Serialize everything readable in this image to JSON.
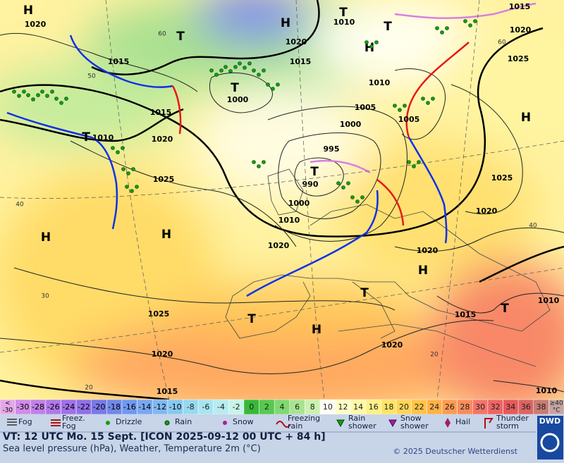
{
  "map": {
    "pressure_labels": [
      "1020",
      "1015",
      "1015",
      "1020",
      "1010",
      "1025",
      "1020",
      "1015",
      "1010",
      "1000",
      "1010",
      "1005",
      "1000",
      "995",
      "990",
      "1000",
      "1010",
      "1020",
      "1005",
      "1025",
      "1020",
      "1020",
      "1025",
      "1020",
      "1015",
      "1020",
      "1015",
      "1010",
      "1010",
      "1015",
      "1020",
      "1025"
    ],
    "systems": [
      "H",
      "T",
      "H",
      "T",
      "T",
      "H",
      "T",
      "H",
      "T",
      "T",
      "H",
      "H",
      "H",
      "T",
      "T",
      "H",
      "T"
    ],
    "temperature_labels": [
      "60",
      "50",
      "40",
      "30",
      "20",
      "60",
      "40",
      "20"
    ]
  },
  "color_scale": [
    {
      "lines": [
        "<",
        "-30"
      ],
      "color": "#e4a8e8"
    },
    {
      "lines": [
        "-30"
      ],
      "color": "#d08ce8"
    },
    {
      "lines": [
        "-28"
      ],
      "color": "#c080e8"
    },
    {
      "lines": [
        "-26"
      ],
      "color": "#b078e8"
    },
    {
      "lines": [
        "-24"
      ],
      "color": "#a070e8"
    },
    {
      "lines": [
        "-22"
      ],
      "color": "#9070e8"
    },
    {
      "lines": [
        "-20"
      ],
      "color": "#7878e8"
    },
    {
      "lines": [
        "-18"
      ],
      "color": "#7088e8"
    },
    {
      "lines": [
        "-16"
      ],
      "color": "#7098f0"
    },
    {
      "lines": [
        "-14"
      ],
      "color": "#78a8f0"
    },
    {
      "lines": [
        "-12"
      ],
      "color": "#80b8f0"
    },
    {
      "lines": [
        "-10"
      ],
      "color": "#88c8f0"
    },
    {
      "lines": [
        "-8"
      ],
      "color": "#98d8f0"
    },
    {
      "lines": [
        "-6"
      ],
      "color": "#a8e4f0"
    },
    {
      "lines": [
        "-4"
      ],
      "color": "#b8ecf0"
    },
    {
      "lines": [
        "-2"
      ],
      "color": "#c8f4e8"
    },
    {
      "lines": [
        "0"
      ],
      "color": "#38b838"
    },
    {
      "lines": [
        "2"
      ],
      "color": "#58c850"
    },
    {
      "lines": [
        "4"
      ],
      "color": "#80d870"
    },
    {
      "lines": [
        "6"
      ],
      "color": "#a8e490"
    },
    {
      "lines": [
        "8"
      ],
      "color": "#ccf0b0"
    },
    {
      "lines": [
        "10"
      ],
      "color": "#fffff4"
    },
    {
      "lines": [
        "12"
      ],
      "color": "#ffffc8"
    },
    {
      "lines": [
        "14"
      ],
      "color": "#fff8a8"
    },
    {
      "lines": [
        "16"
      ],
      "color": "#fff088"
    },
    {
      "lines": [
        "18"
      ],
      "color": "#ffe468"
    },
    {
      "lines": [
        "20"
      ],
      "color": "#ffd458"
    },
    {
      "lines": [
        "22"
      ],
      "color": "#ffc448"
    },
    {
      "lines": [
        "24"
      ],
      "color": "#ffb048"
    },
    {
      "lines": [
        "26"
      ],
      "color": "#ff9c50"
    },
    {
      "lines": [
        "28"
      ],
      "color": "#fa8c5c"
    },
    {
      "lines": [
        "30"
      ],
      "color": "#f47468"
    },
    {
      "lines": [
        "32"
      ],
      "color": "#ee6464"
    },
    {
      "lines": [
        "34"
      ],
      "color": "#e65a5a"
    },
    {
      "lines": [
        "36"
      ],
      "color": "#dc6464"
    },
    {
      "lines": [
        "38"
      ],
      "color": "#c87c74"
    },
    {
      "lines": [
        "≥40",
        "°C"
      ],
      "color": "#c4a4a0"
    }
  ],
  "legend": [
    {
      "lines": [
        "Fog"
      ]
    },
    {
      "lines": [
        "Freez.",
        "Fog"
      ]
    },
    {
      "lines": [
        "Drizzle"
      ]
    },
    {
      "lines": [
        "Rain"
      ]
    },
    {
      "lines": [
        "Snow"
      ]
    },
    {
      "lines": [
        "Freezing",
        "rain"
      ]
    },
    {
      "lines": [
        "Rain",
        "shower"
      ]
    },
    {
      "lines": [
        "Snow",
        "shower"
      ]
    },
    {
      "lines": [
        "Hail"
      ]
    },
    {
      "lines": [
        "Thunder",
        "storm"
      ]
    }
  ],
  "footer": {
    "valid_time": "VT: 12 UTC Mo.  15 Sept. [ICON 2025-09-12  00 UTC + 84 h]",
    "description": "Sea level pressure (hPa), Weather, Temperature 2m (°C)",
    "copyright": "© 2025 Deutscher Wetterdienst",
    "logo": "DWD"
  }
}
